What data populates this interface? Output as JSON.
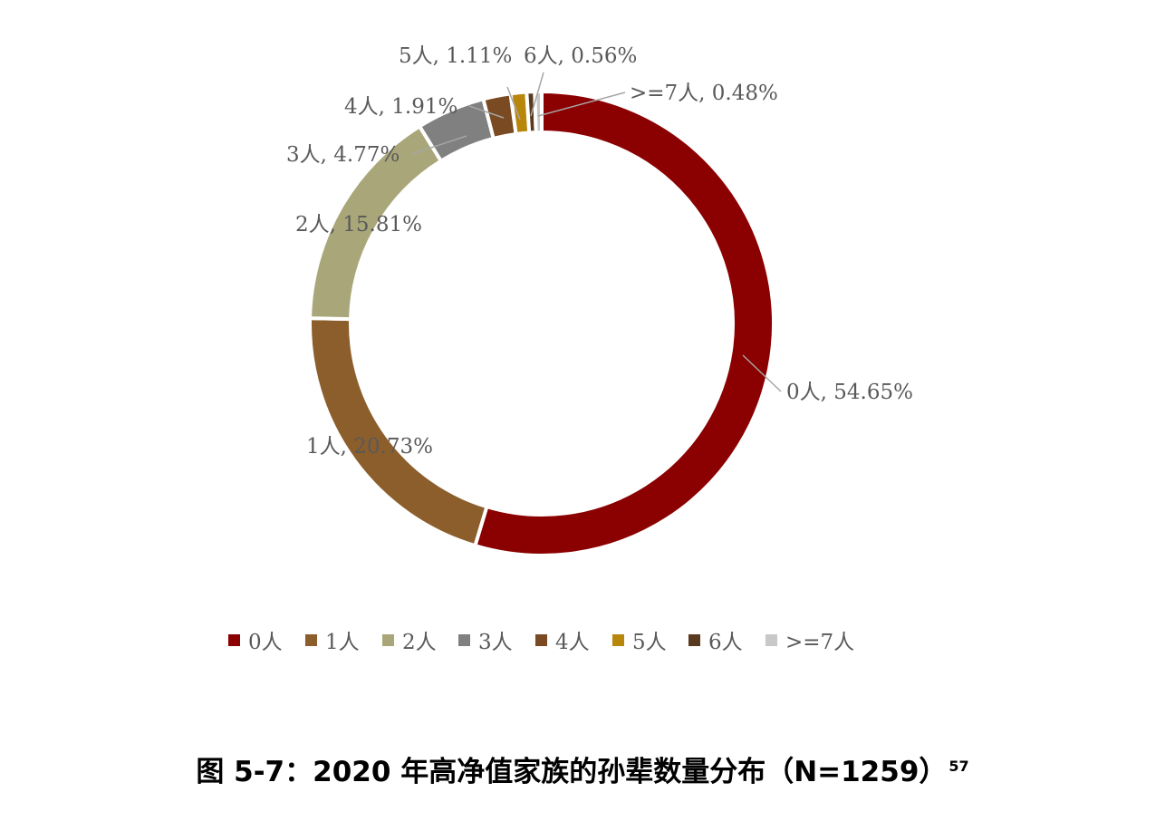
{
  "chart_data": {
    "type": "pie",
    "donut": true,
    "title": "图 5-7：2020 年高净值家族的孙辈数量分布（N=1259）",
    "title_footnote": "57",
    "legend_position": "bottom",
    "slices": [
      {
        "name": "0人",
        "value": 54.65,
        "label": "0人, 54.65%",
        "color": "#8B0000"
      },
      {
        "name": "1人",
        "value": 20.73,
        "label": "1人, 20.73%",
        "color": "#8C5E2B"
      },
      {
        "name": "2人",
        "value": 15.81,
        "label": "2人, 15.81%",
        "color": "#A9A779"
      },
      {
        "name": "3人",
        "value": 4.77,
        "label": "3人, 4.77%",
        "color": "#808080"
      },
      {
        "name": "4人",
        "value": 1.91,
        "label": "4人, 1.91%",
        "color": "#7A4A23"
      },
      {
        "name": "5人",
        "value": 1.11,
        "label": "5人, 1.11%",
        "color": "#B8860B"
      },
      {
        "name": "6人",
        "value": 0.56,
        "label": "6人, 0.56%",
        "color": "#5A3A1E"
      },
      {
        "name": ">=7人",
        "value": 0.48,
        "label": ">=7人, 0.48%",
        "color": "#C8C8C8"
      }
    ]
  }
}
